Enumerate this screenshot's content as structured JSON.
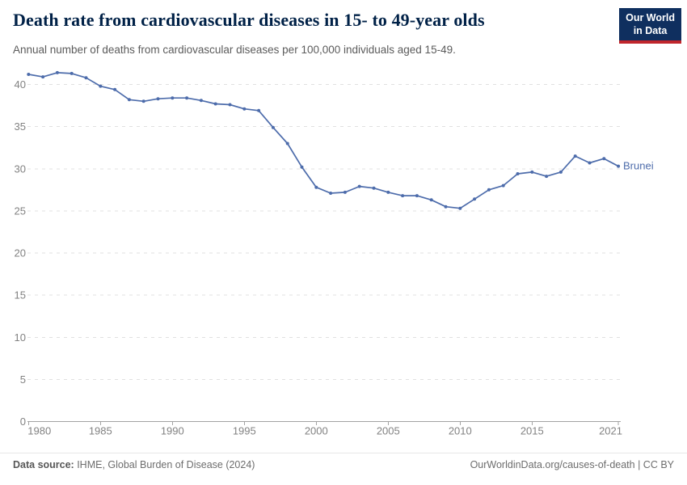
{
  "header": {
    "title": "Death rate from cardiovascular diseases in 15- to 49-year olds",
    "subtitle": "Annual number of deaths from cardiovascular diseases per 100,000 individuals aged 15-49.",
    "logo": {
      "line1": "Our World",
      "line2": "in Data"
    }
  },
  "chart_data": {
    "type": "line",
    "title": "Death rate from cardiovascular diseases in 15- to 49-year olds",
    "subtitle": "Annual number of deaths from cardiovascular diseases per 100,000 individuals aged 15-49.",
    "xlabel": "",
    "ylabel": "",
    "ylim": [
      0,
      42
    ],
    "grid": "horizontal-dashed",
    "legend_position": "end-of-line-label",
    "x": [
      1980,
      1981,
      1982,
      1983,
      1984,
      1985,
      1986,
      1987,
      1988,
      1989,
      1990,
      1991,
      1992,
      1993,
      1994,
      1995,
      1996,
      1997,
      1998,
      1999,
      2000,
      2001,
      2002,
      2003,
      2004,
      2005,
      2006,
      2007,
      2008,
      2009,
      2010,
      2011,
      2012,
      2013,
      2014,
      2015,
      2016,
      2017,
      2018,
      2019,
      2020,
      2021
    ],
    "series": [
      {
        "name": "Brunei",
        "color": "#4d6cab",
        "values": [
          41.2,
          40.9,
          41.4,
          41.3,
          40.8,
          39.8,
          39.4,
          38.2,
          38.0,
          38.3,
          38.4,
          38.4,
          38.1,
          37.7,
          37.6,
          37.1,
          36.9,
          34.9,
          33.0,
          30.2,
          27.8,
          27.1,
          27.2,
          27.9,
          27.7,
          27.2,
          26.8,
          26.8,
          26.3,
          25.5,
          25.3,
          26.4,
          27.5,
          28.0,
          29.4,
          29.6,
          29.1,
          29.6,
          31.5,
          30.7,
          31.2,
          30.3
        ]
      }
    ],
    "yticks": [
      0,
      5,
      10,
      15,
      20,
      25,
      30,
      35,
      40
    ],
    "xticks": [
      1980,
      1985,
      1990,
      1995,
      2000,
      2005,
      2010,
      2015,
      2021
    ],
    "end_label": "Brunei"
  },
  "footer": {
    "datasource_label": "Data source:",
    "datasource_value": " IHME, Global Burden of Disease (2024)",
    "link": "OurWorldinData.org/causes-of-death | CC BY"
  },
  "colors": {
    "line": "#4d6cab",
    "logo_bg": "#0f2f5f",
    "logo_stripe": "#c0262c",
    "title": "#002147",
    "gridline": "#e0e0e0",
    "axis": "#a3a3a3",
    "tick_text": "#828282"
  }
}
